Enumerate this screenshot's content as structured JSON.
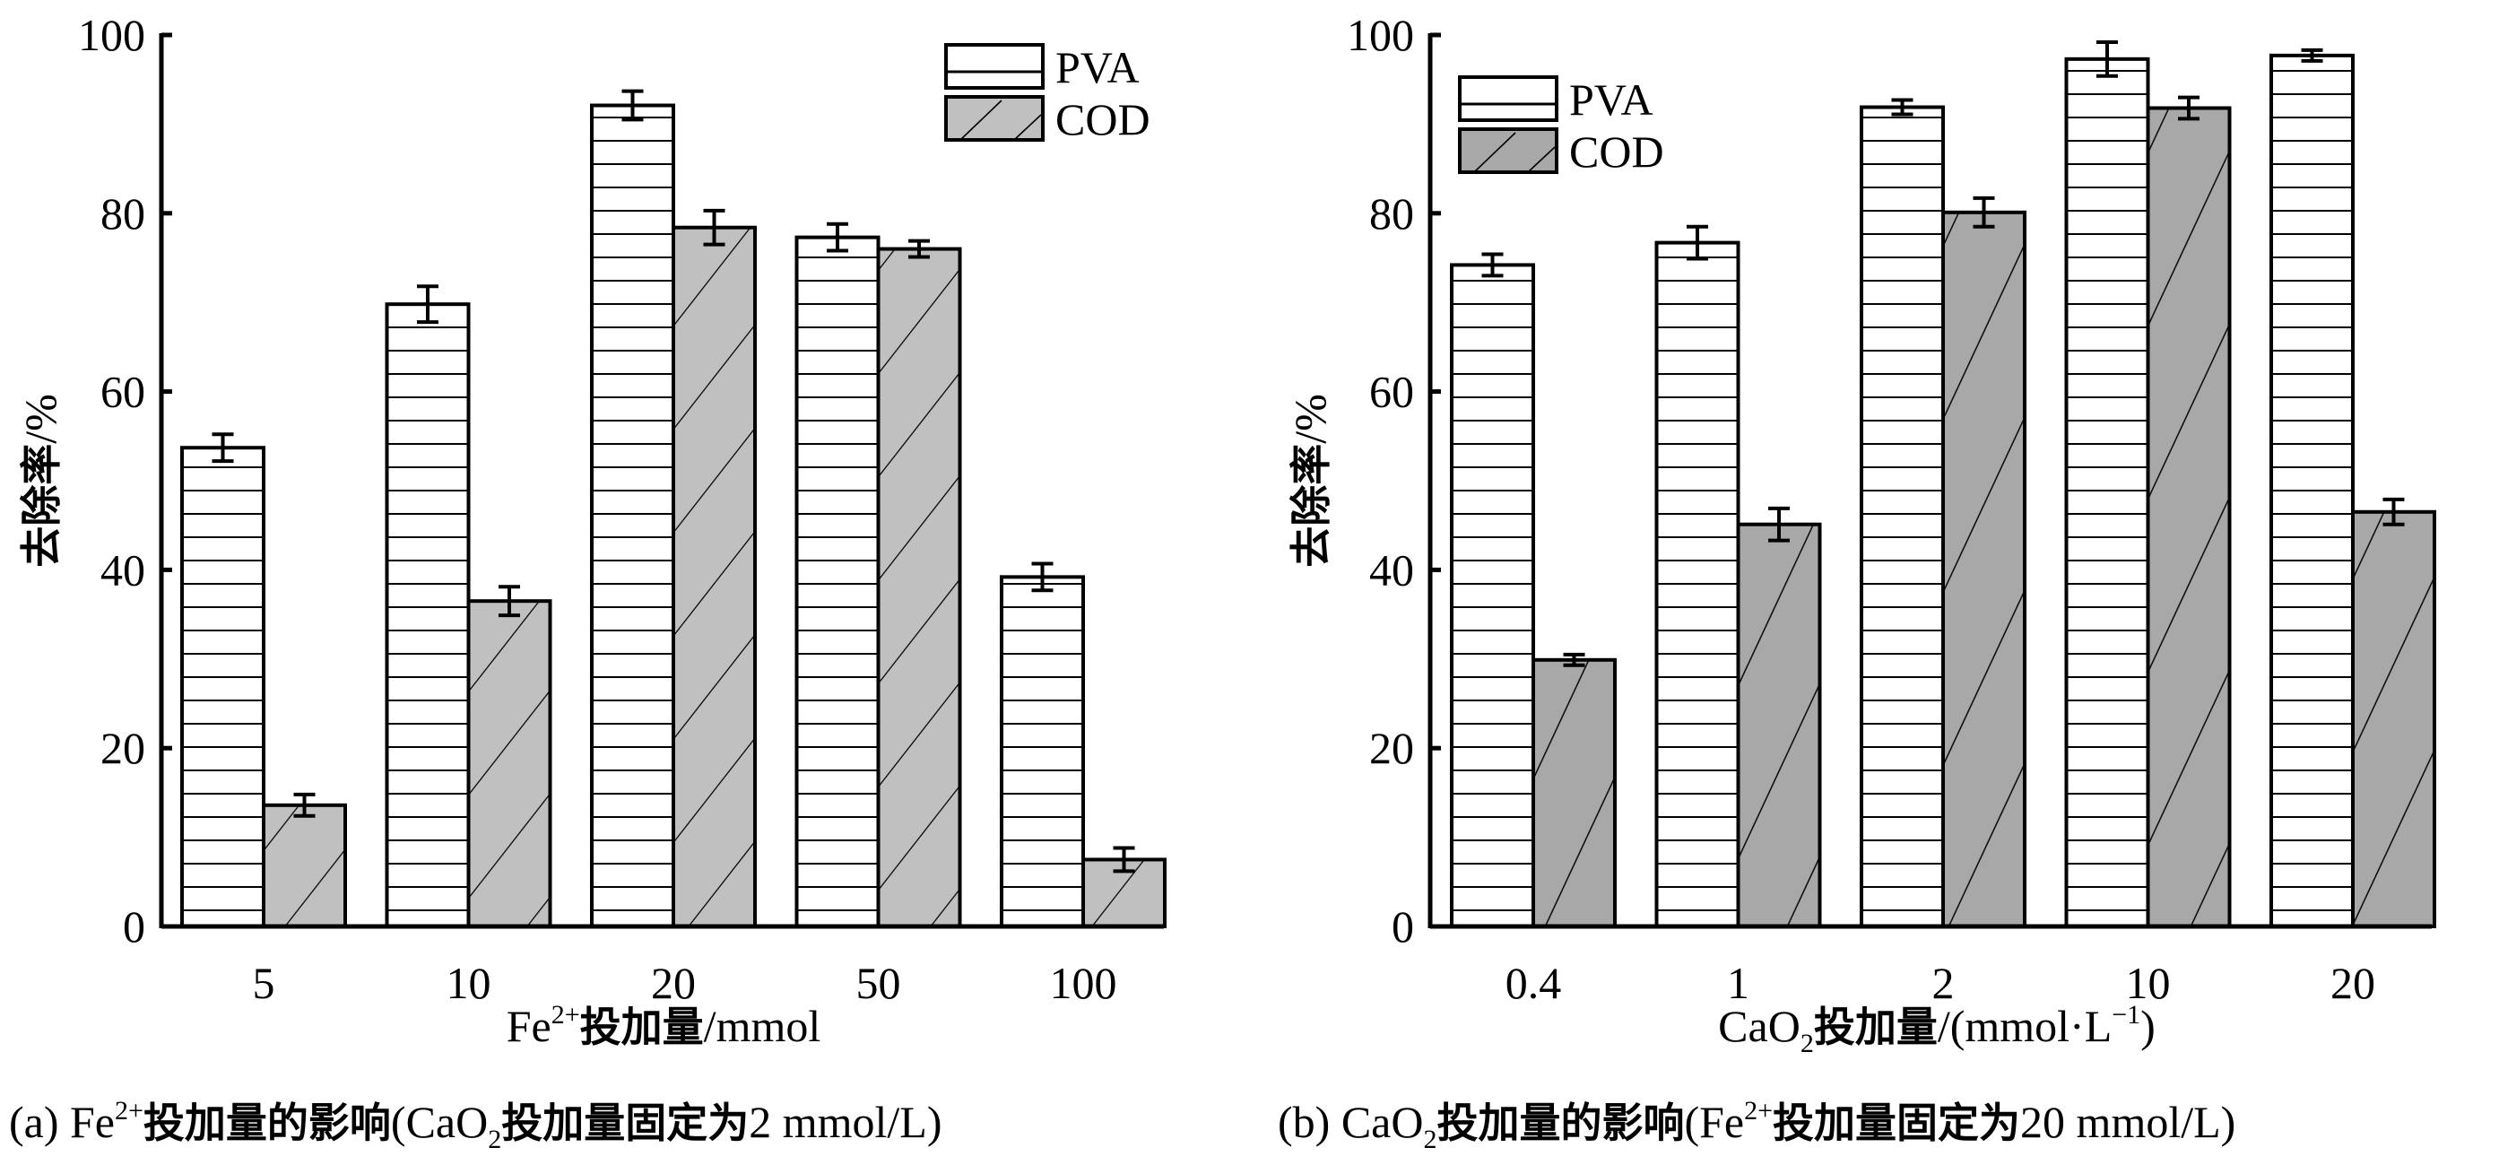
{
  "chart_data": [
    {
      "type": "bar",
      "panel_id": "a",
      "caption": {
        "prefix": "(a)",
        "parts": [
          {
            "text": "Fe",
            "style": "normal"
          },
          {
            "text": "2+",
            "style": "sup"
          },
          {
            "text": "投加量的影响",
            "style": "cn"
          },
          {
            "text": "(CaO",
            "style": "normal"
          },
          {
            "text": "2",
            "style": "sub"
          },
          {
            "text": "投加量固定为",
            "style": "cn"
          },
          {
            "text": "2 mmol/L)",
            "style": "normal"
          }
        ]
      },
      "xlabel_parts": [
        {
          "text": "Fe",
          "style": "normal"
        },
        {
          "text": "2+",
          "style": "sup"
        },
        {
          "text": "投加量",
          "style": "cn"
        },
        {
          "text": "/mmol",
          "style": "normal"
        }
      ],
      "ylabel_parts": [
        {
          "text": "去除率",
          "style": "cn"
        },
        {
          "text": "/%",
          "style": "normal"
        }
      ],
      "categories": [
        "5",
        "10",
        "20",
        "50",
        "100"
      ],
      "ylim": [
        0,
        100
      ],
      "yticks": [
        0,
        20,
        40,
        60,
        80,
        100
      ],
      "grid": false,
      "legend_position": "top-right",
      "cod_fill": "#c0c0c0",
      "series": [
        {
          "name": "PVA",
          "pattern": "horizontal-lines",
          "values": [
            53.7,
            69.8,
            92.1,
            77.3,
            39.2
          ],
          "errors": [
            1.5,
            2.0,
            1.6,
            1.5,
            1.5
          ]
        },
        {
          "name": "COD",
          "pattern": "diagonal-lines",
          "values": [
            13.6,
            36.5,
            78.4,
            76.0,
            7.5
          ],
          "errors": [
            1.2,
            1.6,
            1.9,
            0.9,
            1.3
          ]
        }
      ]
    },
    {
      "type": "bar",
      "panel_id": "b",
      "caption": {
        "prefix": "(b)",
        "parts": [
          {
            "text": "CaO",
            "style": "normal"
          },
          {
            "text": "2",
            "style": "sub"
          },
          {
            "text": "投加量的影响",
            "style": "cn"
          },
          {
            "text": "(Fe",
            "style": "normal"
          },
          {
            "text": "2+",
            "style": "sup"
          },
          {
            "text": "投加量固定为",
            "style": "cn"
          },
          {
            "text": "20 mmol/L)",
            "style": "normal"
          }
        ]
      },
      "xlabel_parts": [
        {
          "text": "CaO",
          "style": "normal"
        },
        {
          "text": "2",
          "style": "sub"
        },
        {
          "text": "投加量",
          "style": "cn"
        },
        {
          "text": "/(mmol·L",
          "style": "normal"
        },
        {
          "text": "−1",
          "style": "sup"
        },
        {
          "text": ")",
          "style": "normal"
        }
      ],
      "ylabel_parts": [
        {
          "text": "去除率",
          "style": "cn"
        },
        {
          "text": "/%",
          "style": "normal"
        }
      ],
      "categories": [
        "0.4",
        "1",
        "2",
        "10",
        "20"
      ],
      "ylim": [
        0,
        100
      ],
      "yticks": [
        0,
        20,
        40,
        60,
        80,
        100
      ],
      "grid": false,
      "legend_position": "top-left",
      "cod_fill": "#a8a8a8",
      "series": [
        {
          "name": "PVA",
          "pattern": "horizontal-lines",
          "values": [
            74.2,
            76.7,
            91.9,
            97.3,
            97.7
          ],
          "errors": [
            1.2,
            1.8,
            0.8,
            1.9,
            0.6
          ]
        },
        {
          "name": "COD",
          "pattern": "diagonal-lines",
          "values": [
            29.9,
            45.1,
            80.1,
            91.8,
            46.5
          ],
          "errors": [
            0.6,
            1.8,
            1.6,
            1.2,
            1.4
          ]
        }
      ]
    }
  ]
}
